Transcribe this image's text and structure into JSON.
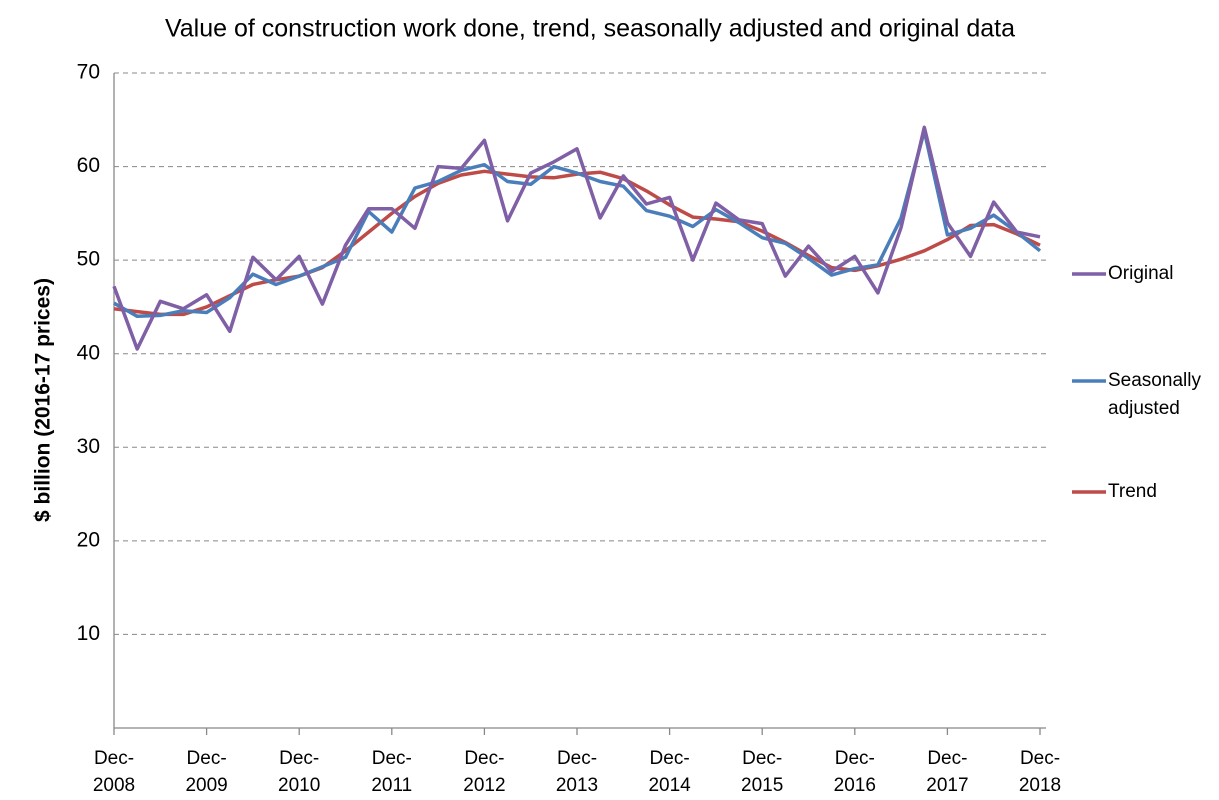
{
  "chart_data": {
    "type": "line",
    "title": "Value of construction work done, trend, seasonally adjusted and original data",
    "y_label": "$ billion (2016-17 prices)",
    "categories": [
      "Dec-2008",
      null,
      null,
      null,
      "Dec-2009",
      null,
      null,
      null,
      "Dec-2010",
      null,
      null,
      null,
      "Dec-2011",
      null,
      null,
      null,
      "Dec-2012",
      null,
      null,
      null,
      "Dec-2013",
      null,
      null,
      null,
      "Dec-2014",
      null,
      null,
      null,
      "Dec-2015",
      null,
      null,
      null,
      "Dec-2016",
      null,
      null,
      null,
      "Dec-2017",
      null,
      null,
      null,
      "Dec-2018"
    ],
    "series": [
      {
        "name": "Original",
        "color": "#7f5fa5",
        "values": [
          47.2,
          40.5,
          45.6,
          44.8,
          46.3,
          42.4,
          50.3,
          47.9,
          50.4,
          45.3,
          51.6,
          55.5,
          55.5,
          53.4,
          60.0,
          59.8,
          62.8,
          54.2,
          59.3,
          60.5,
          61.9,
          54.5,
          59.0,
          56.0,
          56.7,
          50.0,
          56.1,
          54.3,
          53.9,
          48.3,
          51.5,
          48.8,
          50.4,
          46.5,
          53.5,
          64.2,
          54.0,
          50.4,
          56.2,
          53.0,
          52.5
        ]
      },
      {
        "name": "Seasonally adjusted",
        "color": "#4a7ebb",
        "values": [
          45.4,
          44.0,
          44.1,
          44.6,
          44.4,
          46.0,
          48.5,
          47.4,
          48.3,
          49.3,
          50.3,
          55.2,
          53.0,
          57.7,
          58.4,
          59.6,
          60.2,
          58.4,
          58.1,
          60.0,
          59.3,
          58.4,
          57.9,
          55.3,
          54.7,
          53.6,
          55.4,
          54.0,
          52.4,
          51.8,
          50.2,
          48.4,
          49.1,
          49.5,
          54.5,
          63.8,
          52.7,
          53.4,
          54.8,
          53.0,
          51.0
        ]
      },
      {
        "name": "Trend",
        "color": "#be4b48",
        "values": [
          44.8,
          44.5,
          44.2,
          44.2,
          45.0,
          46.2,
          47.4,
          47.9,
          48.3,
          49.2,
          51.0,
          53.0,
          55.0,
          56.8,
          58.2,
          59.1,
          59.5,
          59.2,
          58.9,
          58.8,
          59.2,
          59.4,
          58.7,
          57.4,
          55.9,
          54.6,
          54.4,
          54.1,
          53.1,
          51.9,
          50.5,
          49.2,
          48.9,
          49.4,
          50.1,
          51.0,
          52.2,
          53.7,
          53.8,
          52.8,
          51.6
        ]
      }
    ],
    "ylim": [
      0,
      70
    ],
    "yticks": [
      10,
      20,
      30,
      40,
      50,
      60,
      70
    ],
    "grid": true,
    "legend": "right"
  }
}
